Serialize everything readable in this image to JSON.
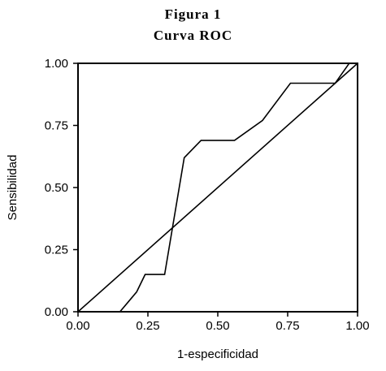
{
  "chart_data": {
    "type": "line",
    "title": "Figura 1",
    "subtitle": "Curva ROC",
    "xlabel": "1-especificidad",
    "ylabel": "Sensibilidad",
    "xlim": [
      0,
      1
    ],
    "ylim": [
      0,
      1
    ],
    "xticks": [
      "0.00",
      "0.25",
      "0.50",
      "0.75",
      "1.00"
    ],
    "yticks": [
      "0.00",
      "0.25",
      "0.50",
      "0.75",
      "1.00"
    ],
    "grid": false,
    "series": [
      {
        "x": [
          0.15,
          0.18,
          0.21,
          0.24,
          0.31,
          0.38,
          0.44,
          0.56,
          0.66,
          0.76,
          0.92,
          0.97,
          1.0
        ],
        "y": [
          0.0,
          0.04,
          0.08,
          0.15,
          0.15,
          0.62,
          0.69,
          0.69,
          0.77,
          0.92,
          0.92,
          1.0,
          1.0
        ]
      },
      {
        "x": [
          0.0,
          1.0
        ],
        "y": [
          0.0,
          1.0
        ]
      }
    ],
    "colors": {
      "line": "#000000",
      "axis": "#000000"
    }
  }
}
